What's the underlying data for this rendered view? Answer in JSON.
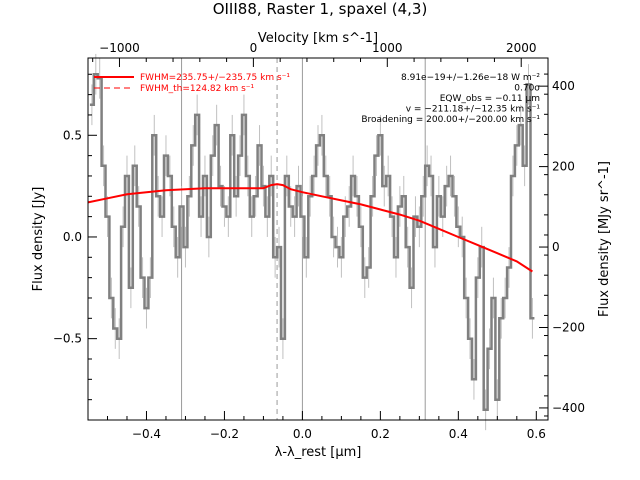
{
  "chart_data": {
    "type": "line",
    "title": "OIII88, Raster 1, spaxel (4,3)",
    "xlabel": "λ-λ_rest [μm]",
    "ylabel": "Flux density [Jy]",
    "x2label": "Velocity [km s^-1]",
    "y2label": "Flux density [MJy sr^-1]",
    "xlim": [
      -0.55,
      0.63
    ],
    "ylim": [
      -0.9,
      0.88
    ],
    "x_ticks": [
      -0.4,
      -0.2,
      0.0,
      0.2,
      0.4,
      0.6
    ],
    "x_tick_labels": [
      "−0.4",
      "−0.2",
      "0.0",
      "0.2",
      "0.4",
      "0.6"
    ],
    "y_ticks": [
      -0.5,
      0.0,
      0.5
    ],
    "y_tick_labels": [
      "−0.5",
      "0.0",
      "0.5"
    ],
    "x2_ticks": [
      -1000,
      0,
      1000,
      2000
    ],
    "x2_tick_labels": [
      "−1000",
      "0",
      "1000",
      "2000"
    ],
    "y2_ticks": [
      -400,
      -200,
      0,
      200,
      400
    ],
    "y2_tick_labels": [
      "−400",
      "−200",
      "0",
      "200",
      "400"
    ],
    "grid": false,
    "vertical_lines_x": [
      -0.31,
      0.0,
      0.315
    ],
    "dashed_line_x": -0.065,
    "legend": {
      "placement": "top-left",
      "entries": [
        {
          "label": "FWHM=235.75+/−235.75 km s⁻¹",
          "style": "solid",
          "color": "#ff0000"
        },
        {
          "label": "FWHM_th=124.82 km s⁻¹",
          "style": "dashed",
          "color": "#ff0000"
        }
      ]
    },
    "annotations": [
      "8.91e−19+/−1.26e−18 W m⁻²",
      "0.70σ",
      "EQW_obs = −0.11 μm",
      "v = −211.18+/−12.35 km s⁻¹",
      "Broadening = 200.00+/−200.00 km s⁻¹"
    ],
    "series": [
      {
        "color": "#808080",
        "x": [
          -0.54,
          -0.53,
          -0.52,
          -0.51,
          -0.5,
          -0.49,
          -0.48,
          -0.47,
          -0.46,
          -0.45,
          -0.44,
          -0.43,
          -0.42,
          -0.41,
          -0.4,
          -0.39,
          -0.38,
          -0.37,
          -0.36,
          -0.35,
          -0.34,
          -0.33,
          -0.32,
          -0.31,
          -0.3,
          -0.29,
          -0.28,
          -0.27,
          -0.26,
          -0.25,
          -0.24,
          -0.23,
          -0.22,
          -0.21,
          -0.2,
          -0.19,
          -0.18,
          -0.17,
          -0.16,
          -0.15,
          -0.14,
          -0.13,
          -0.12,
          -0.11,
          -0.1,
          -0.09,
          -0.08,
          -0.07,
          -0.06,
          -0.05,
          -0.04,
          -0.03,
          -0.02,
          -0.01,
          0.0,
          0.01,
          0.02,
          0.03,
          0.04,
          0.05,
          0.06,
          0.07,
          0.08,
          0.09,
          0.1,
          0.11,
          0.12,
          0.13,
          0.14,
          0.15,
          0.16,
          0.17,
          0.18,
          0.19,
          0.2,
          0.21,
          0.22,
          0.23,
          0.24,
          0.25,
          0.26,
          0.27,
          0.28,
          0.29,
          0.3,
          0.31,
          0.32,
          0.33,
          0.34,
          0.35,
          0.36,
          0.37,
          0.38,
          0.39,
          0.4,
          0.41,
          0.42,
          0.43,
          0.44,
          0.45,
          0.46,
          0.47,
          0.48,
          0.49,
          0.5,
          0.51,
          0.52,
          0.53,
          0.54,
          0.55,
          0.56,
          0.57,
          0.58,
          0.59
        ],
        "y": [
          0.65,
          0.8,
          0.78,
          0.35,
          0.1,
          -0.3,
          -0.45,
          -0.5,
          0.05,
          0.3,
          -0.25,
          0.35,
          0.15,
          -0.2,
          -0.35,
          -0.2,
          0.5,
          0.2,
          0.1,
          0.4,
          0.3,
          0.05,
          -0.1,
          0.15,
          -0.05,
          0.2,
          0.45,
          0.6,
          0.1,
          0.3,
          0.0,
          0.4,
          0.55,
          0.25,
          0.15,
          0.1,
          0.5,
          0.2,
          0.4,
          0.6,
          0.3,
          0.1,
          0.2,
          0.45,
          0.25,
          0.1,
          0.3,
          -0.1,
          -0.05,
          -0.5,
          0.3,
          0.15,
          0.1,
          0.25,
          0.1,
          -0.1,
          0.2,
          0.3,
          0.45,
          0.5,
          0.3,
          0.2,
          0.0,
          -0.05,
          -0.1,
          0.1,
          0.15,
          0.3,
          0.2,
          0.05,
          -0.2,
          -0.15,
          0.2,
          0.4,
          0.5,
          0.25,
          0.3,
          0.1,
          -0.1,
          0.15,
          0.2,
          -0.05,
          -0.25,
          0.1,
          0.05,
          0.2,
          0.35,
          0.3,
          -0.05,
          0.2,
          0.1,
          0.25,
          0.3,
          0.2,
          0.05,
          0.0,
          -0.3,
          -0.5,
          -0.7,
          -0.2,
          -0.05,
          -0.85,
          -0.55,
          -0.3,
          -0.8,
          -0.4,
          -0.3,
          -0.15,
          0.3,
          0.45,
          0.55,
          0.35,
          0.75,
          -0.4
        ]
      },
      {
        "color": "#ff0000",
        "x": [
          -0.55,
          -0.5,
          -0.45,
          -0.4,
          -0.35,
          -0.3,
          -0.25,
          -0.2,
          -0.15,
          -0.1,
          -0.08,
          -0.065,
          -0.05,
          -0.03,
          0.0,
          0.05,
          0.1,
          0.15,
          0.2,
          0.25,
          0.3,
          0.35,
          0.4,
          0.45,
          0.5,
          0.55,
          0.59
        ],
        "y": [
          0.17,
          0.19,
          0.21,
          0.22,
          0.23,
          0.235,
          0.24,
          0.24,
          0.24,
          0.24,
          0.255,
          0.26,
          0.255,
          0.235,
          0.22,
          0.2,
          0.18,
          0.16,
          0.135,
          0.11,
          0.08,
          0.04,
          0.0,
          -0.04,
          -0.08,
          -0.12,
          -0.17
        ]
      }
    ]
  }
}
